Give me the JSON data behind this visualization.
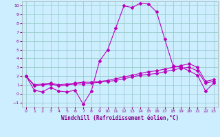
{
  "title": "",
  "xlabel": "Windchill (Refroidissement éolien,°C)",
  "ylabel": "",
  "bg_color": "#cceeff",
  "grid_color": "#99cccc",
  "line_color": "#bb00bb",
  "xlim": [
    -0.5,
    23.5
  ],
  "ylim": [
    -1.5,
    10.5
  ],
  "xticks": [
    0,
    1,
    2,
    3,
    4,
    5,
    6,
    7,
    8,
    9,
    10,
    11,
    12,
    13,
    14,
    15,
    16,
    17,
    18,
    19,
    20,
    21,
    22,
    23
  ],
  "yticks": [
    -1,
    0,
    1,
    2,
    3,
    4,
    5,
    6,
    7,
    8,
    9,
    10
  ],
  "series1_x": [
    0,
    1,
    2,
    3,
    4,
    5,
    6,
    7,
    8,
    9,
    10,
    11,
    12,
    13,
    14,
    15,
    16,
    17,
    18,
    19,
    20,
    21,
    22,
    23
  ],
  "series1_y": [
    2.0,
    0.4,
    0.2,
    0.7,
    0.3,
    0.2,
    0.4,
    -1.2,
    0.3,
    3.7,
    5.0,
    7.5,
    10.0,
    9.8,
    10.3,
    10.2,
    9.3,
    6.2,
    3.2,
    3.0,
    2.6,
    2.1,
    0.3,
    1.2
  ],
  "series2_x": [
    0,
    1,
    2,
    3,
    4,
    5,
    6,
    7,
    8,
    9,
    10,
    11,
    12,
    13,
    14,
    15,
    16,
    17,
    18,
    19,
    20,
    21,
    22,
    23
  ],
  "series2_y": [
    2.0,
    0.9,
    1.0,
    1.1,
    0.9,
    1.0,
    1.1,
    1.1,
    1.2,
    1.3,
    1.4,
    1.5,
    1.7,
    1.9,
    2.1,
    2.2,
    2.3,
    2.5,
    2.7,
    2.9,
    3.0,
    2.6,
    1.2,
    1.4
  ],
  "series3_x": [
    0,
    1,
    2,
    3,
    4,
    5,
    6,
    7,
    8,
    9,
    10,
    11,
    12,
    13,
    14,
    15,
    16,
    17,
    18,
    19,
    20,
    21,
    22,
    23
  ],
  "series3_y": [
    2.0,
    1.0,
    1.1,
    1.2,
    1.0,
    1.1,
    1.2,
    1.3,
    1.3,
    1.4,
    1.5,
    1.7,
    1.9,
    2.1,
    2.3,
    2.5,
    2.6,
    2.8,
    3.0,
    3.2,
    3.4,
    3.0,
    1.4,
    1.6
  ]
}
